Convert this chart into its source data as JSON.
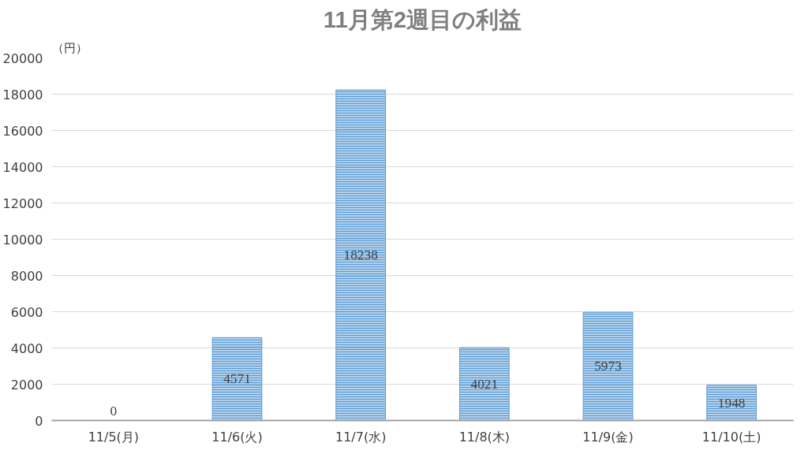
{
  "chart_data": {
    "type": "bar",
    "title": "11月第2週目の利益",
    "ylabel": "（円）",
    "categories": [
      "11/5(月)",
      "11/6(火)",
      "11/7(水)",
      "11/8(木)",
      "11/9(金)",
      "11/10(土)"
    ],
    "values": [
      0,
      4571,
      18238,
      4021,
      5973,
      1948
    ],
    "color": "#5b9bd5",
    "ylim": [
      0,
      20000
    ],
    "yticks": [
      0,
      2000,
      4000,
      6000,
      8000,
      10000,
      12000,
      14000,
      16000,
      18000,
      20000
    ],
    "grid": "y",
    "data_labels": true
  }
}
